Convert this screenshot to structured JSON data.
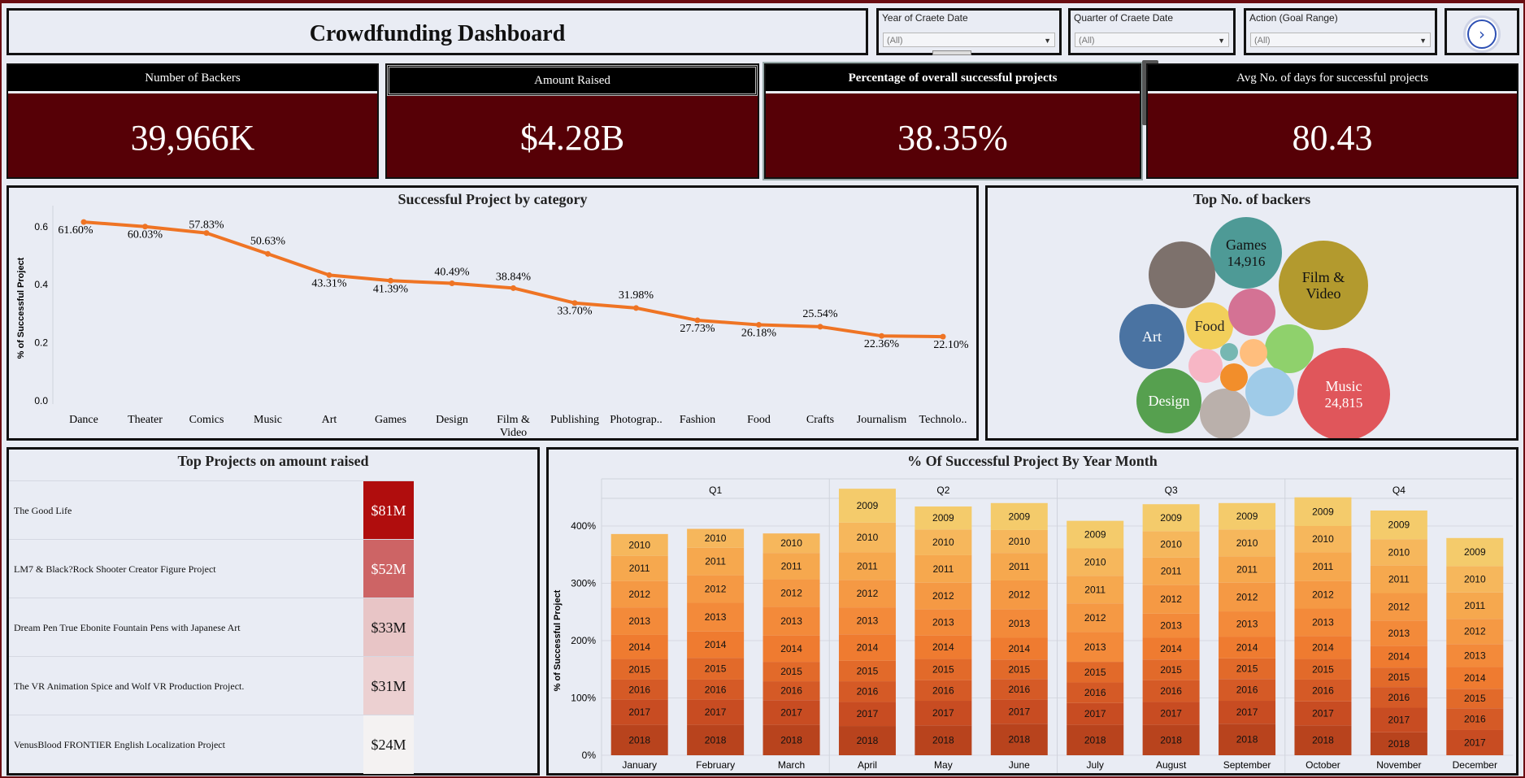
{
  "dashboard": {
    "title": "Crowdfunding Dashboard"
  },
  "filters": [
    {
      "label": "Year of Craete Date",
      "value": "(All)"
    },
    {
      "label": "Quarter of Craete Date",
      "value": "(All)"
    },
    {
      "label": "Action (Goal Range)",
      "value": "(All)"
    }
  ],
  "nav": {
    "icon": "chevron-right-icon"
  },
  "kpis": [
    {
      "label": "Number of Backers",
      "value": "39,966K"
    },
    {
      "label": "Amount Raised",
      "value": "$4.28B"
    },
    {
      "label": "Percentage of overall successful projects",
      "value": "38.35%"
    },
    {
      "label": "Avg No. of days for successful projects",
      "value": "80.43"
    }
  ],
  "sheet_controls": {
    "icons": [
      "close-icon",
      "popout-icon",
      "filter-icon",
      "dropdown-icon"
    ],
    "glyphs": [
      "✕",
      "⧉",
      "⊽",
      "▾"
    ]
  },
  "line_chart": {
    "title": "Successful Project by category",
    "ylabel": "% of Successful Project",
    "color": "#ef7424"
  },
  "bubble_chart": {
    "title": "Top No. of backers",
    "bubbles": [
      {
        "label": "Music",
        "value": "24,815",
        "color": "#e0565b"
      },
      {
        "label": "Games",
        "value": "14,916",
        "color": "#4e9a96"
      },
      {
        "label": "Film & Video",
        "value": "",
        "color": "#b39a2e"
      },
      {
        "label": "Art",
        "value": "",
        "color": "#4a73a2"
      },
      {
        "label": "Design",
        "value": "",
        "color": "#56a04f"
      },
      {
        "label": "Food",
        "value": "",
        "color": "#f2cf5b"
      },
      {
        "label": "",
        "value": "",
        "color": "#7d716c"
      },
      {
        "label": "",
        "value": "",
        "color": "#d47294"
      },
      {
        "label": "",
        "value": "",
        "color": "#8fd16c"
      },
      {
        "label": "",
        "value": "",
        "color": "#9fcbe8"
      },
      {
        "label": "",
        "value": "",
        "color": "#bab0ab"
      },
      {
        "label": "",
        "value": "",
        "color": "#f7b6c5"
      },
      {
        "label": "",
        "value": "",
        "color": "#ffbe7d"
      },
      {
        "label": "",
        "value": "",
        "color": "#f28e2b"
      },
      {
        "label": "",
        "value": "",
        "color": "#76b7b2"
      }
    ]
  },
  "top_projects": {
    "title": "Top Projects on amount raised",
    "rows": [
      {
        "name": "The Good Life",
        "amount": "$81M",
        "color": "#b00d0d",
        "text_color": "#ffffff"
      },
      {
        "name": "LM7 & Black?Rock Shooter Creator Figure Project",
        "amount": "$52M",
        "color": "#cd6465",
        "text_color": "#ffffff"
      },
      {
        "name": "Dream Pen  True Ebonite Fountain Pens with Japanese Art",
        "amount": "$33M",
        "color": "#e8c5c6",
        "text_color": "#111111"
      },
      {
        "name": "The VR Animation Spice and Wolf VR Production Project.",
        "amount": "$31M",
        "color": "#ecd0d1",
        "text_color": "#111111"
      },
      {
        "name": "VenusBlood FRONTIER English Localization Project",
        "amount": "$24M",
        "color": "#f4f2f2",
        "text_color": "#111111"
      }
    ]
  },
  "stacked_chart": {
    "title": "% Of Successful Project By Year Month",
    "ylabel": "% of Successful Project",
    "quarters": [
      "Q1",
      "Q2",
      "Q3",
      "Q4"
    ]
  },
  "chart_data": [
    {
      "type": "line",
      "title": "Successful Project by category",
      "ylabel": "% of Successful Project",
      "categories": [
        "Dance",
        "Theater",
        "Comics",
        "Music",
        "Art",
        "Games",
        "Design",
        "Film & Video",
        "Publishing",
        "Photograp..",
        "Fashion",
        "Food",
        "Crafts",
        "Journalism",
        "Technolo.."
      ],
      "values": [
        0.616,
        0.6003,
        0.5783,
        0.5063,
        0.4331,
        0.4139,
        0.4049,
        0.3884,
        0.337,
        0.3198,
        0.2773,
        0.2618,
        0.2554,
        0.2236,
        0.221
      ],
      "data_labels": [
        "61.60%",
        "60.03%",
        "57.83%",
        "50.63%",
        "43.31%",
        "41.39%",
        "40.49%",
        "38.84%",
        "33.70%",
        "31.98%",
        "27.73%",
        "26.18%",
        "25.54%",
        "22.36%",
        "22.10%"
      ],
      "yticks": [
        "0.0",
        "0.2",
        "0.4",
        "0.6"
      ],
      "ylim": [
        0,
        0.65
      ]
    },
    {
      "type": "bar",
      "stacked": true,
      "title": "% Of Successful Project By Year Month",
      "ylabel": "% of Successful Project",
      "quarters": [
        "Q1",
        "Q2",
        "Q3",
        "Q4"
      ],
      "categories": [
        "January",
        "February",
        "March",
        "April",
        "May",
        "June",
        "July",
        "August",
        "September",
        "October",
        "November",
        "December"
      ],
      "yticks": [
        "0%",
        "100%",
        "200%",
        "300%",
        "400%"
      ],
      "ylim": [
        0,
        440
      ],
      "year_colors": {
        "2009": "#f4cb6b",
        "2010": "#f6b75c",
        "2011": "#f6a84e",
        "2012": "#f59944",
        "2013": "#f38a3a",
        "2014": "#ef7b30",
        "2015": "#e26a2a",
        "2016": "#d55a26",
        "2017": "#c84c22",
        "2018": "#b8431d"
      },
      "series": [
        {
          "month": "January",
          "segments": [
            {
              "year": "2018",
              "value": 53
            },
            {
              "year": "2017",
              "value": 44
            },
            {
              "year": "2016",
              "value": 35
            },
            {
              "year": "2015",
              "value": 36
            },
            {
              "year": "2014",
              "value": 42
            },
            {
              "year": "2013",
              "value": 48
            },
            {
              "year": "2012",
              "value": 46
            },
            {
              "year": "2011",
              "value": 44
            },
            {
              "year": "2010",
              "value": 38
            }
          ]
        },
        {
          "month": "February",
          "segments": [
            {
              "year": "2018",
              "value": 53
            },
            {
              "year": "2017",
              "value": 44
            },
            {
              "year": "2016",
              "value": 35
            },
            {
              "year": "2015",
              "value": 38
            },
            {
              "year": "2014",
              "value": 46
            },
            {
              "year": "2013",
              "value": 50
            },
            {
              "year": "2012",
              "value": 48
            },
            {
              "year": "2011",
              "value": 48
            },
            {
              "year": "2010",
              "value": 33
            }
          ]
        },
        {
          "month": "March",
          "segments": [
            {
              "year": "2018",
              "value": 53
            },
            {
              "year": "2017",
              "value": 43
            },
            {
              "year": "2016",
              "value": 33
            },
            {
              "year": "2015",
              "value": 34
            },
            {
              "year": "2014",
              "value": 46
            },
            {
              "year": "2013",
              "value": 50
            },
            {
              "year": "2012",
              "value": 48
            },
            {
              "year": "2011",
              "value": 46
            },
            {
              "year": "2010",
              "value": 34
            }
          ]
        },
        {
          "month": "April",
          "segments": [
            {
              "year": "2018",
              "value": 51
            },
            {
              "year": "2017",
              "value": 42
            },
            {
              "year": "2016",
              "value": 36
            },
            {
              "year": "2015",
              "value": 36
            },
            {
              "year": "2014",
              "value": 46
            },
            {
              "year": "2013",
              "value": 47
            },
            {
              "year": "2012",
              "value": 48
            },
            {
              "year": "2011",
              "value": 48
            },
            {
              "year": "2010",
              "value": 52
            },
            {
              "year": "2009",
              "value": 59
            }
          ]
        },
        {
          "month": "May",
          "segments": [
            {
              "year": "2018",
              "value": 52
            },
            {
              "year": "2017",
              "value": 43
            },
            {
              "year": "2016",
              "value": 36
            },
            {
              "year": "2015",
              "value": 37
            },
            {
              "year": "2014",
              "value": 41
            },
            {
              "year": "2013",
              "value": 46
            },
            {
              "year": "2012",
              "value": 46
            },
            {
              "year": "2011",
              "value": 48
            },
            {
              "year": "2010",
              "value": 45
            },
            {
              "year": "2009",
              "value": 40
            }
          ]
        },
        {
          "month": "June",
          "segments": [
            {
              "year": "2018",
              "value": 55
            },
            {
              "year": "2017",
              "value": 42
            },
            {
              "year": "2016",
              "value": 36
            },
            {
              "year": "2015",
              "value": 34
            },
            {
              "year": "2014",
              "value": 38
            },
            {
              "year": "2013",
              "value": 50
            },
            {
              "year": "2012",
              "value": 50
            },
            {
              "year": "2011",
              "value": 48
            },
            {
              "year": "2010",
              "value": 40
            },
            {
              "year": "2009",
              "value": 47
            }
          ]
        },
        {
          "month": "July",
          "segments": [
            {
              "year": "2018",
              "value": 53
            },
            {
              "year": "2017",
              "value": 38
            },
            {
              "year": "2016",
              "value": 36
            },
            {
              "year": "2015",
              "value": 36
            },
            {
              "year": "2014",
              "value": 0
            },
            {
              "year": "2013",
              "value": 52
            },
            {
              "year": "2012",
              "value": 50
            },
            {
              "year": "2011",
              "value": 48
            },
            {
              "year": "2010",
              "value": 48
            },
            {
              "year": "2009",
              "value": 48
            }
          ]
        },
        {
          "month": "August",
          "segments": [
            {
              "year": "2018",
              "value": 53
            },
            {
              "year": "2017",
              "value": 40
            },
            {
              "year": "2016",
              "value": 38
            },
            {
              "year": "2015",
              "value": 36
            },
            {
              "year": "2014",
              "value": 38
            },
            {
              "year": "2013",
              "value": 42
            },
            {
              "year": "2012",
              "value": 50
            },
            {
              "year": "2011",
              "value": 48
            },
            {
              "year": "2010",
              "value": 46
            },
            {
              "year": "2009",
              "value": 47
            }
          ]
        },
        {
          "month": "September",
          "segments": [
            {
              "year": "2018",
              "value": 55
            },
            {
              "year": "2017",
              "value": 40
            },
            {
              "year": "2016",
              "value": 38
            },
            {
              "year": "2015",
              "value": 36
            },
            {
              "year": "2014",
              "value": 38
            },
            {
              "year": "2013",
              "value": 44
            },
            {
              "year": "2012",
              "value": 50
            },
            {
              "year": "2011",
              "value": 46
            },
            {
              "year": "2010",
              "value": 47
            },
            {
              "year": "2009",
              "value": 46
            }
          ]
        },
        {
          "month": "October",
          "segments": [
            {
              "year": "2018",
              "value": 52
            },
            {
              "year": "2017",
              "value": 42
            },
            {
              "year": "2016",
              "value": 38
            },
            {
              "year": "2015",
              "value": 36
            },
            {
              "year": "2014",
              "value": 40
            },
            {
              "year": "2013",
              "value": 48
            },
            {
              "year": "2012",
              "value": 48
            },
            {
              "year": "2011",
              "value": 50
            },
            {
              "year": "2010",
              "value": 46
            },
            {
              "year": "2009",
              "value": 50
            }
          ]
        },
        {
          "month": "November",
          "segments": [
            {
              "year": "2018",
              "value": 40
            },
            {
              "year": "2017",
              "value": 43
            },
            {
              "year": "2016",
              "value": 36
            },
            {
              "year": "2015",
              "value": 34
            },
            {
              "year": "2014",
              "value": 38
            },
            {
              "year": "2013",
              "value": 44
            },
            {
              "year": "2012",
              "value": 48
            },
            {
              "year": "2011",
              "value": 48
            },
            {
              "year": "2010",
              "value": 46
            },
            {
              "year": "2009",
              "value": 50
            }
          ]
        },
        {
          "month": "December",
          "segments": [
            {
              "year": "2018",
              "value": 0
            },
            {
              "year": "2017",
              "value": 44
            },
            {
              "year": "2016",
              "value": 38
            },
            {
              "year": "2015",
              "value": 34
            },
            {
              "year": "2014",
              "value": 38
            },
            {
              "year": "2013",
              "value": 40
            },
            {
              "year": "2012",
              "value": 44
            },
            {
              "year": "2011",
              "value": 46
            },
            {
              "year": "2010",
              "value": 46
            },
            {
              "year": "2009",
              "value": 49
            }
          ]
        }
      ]
    }
  ]
}
